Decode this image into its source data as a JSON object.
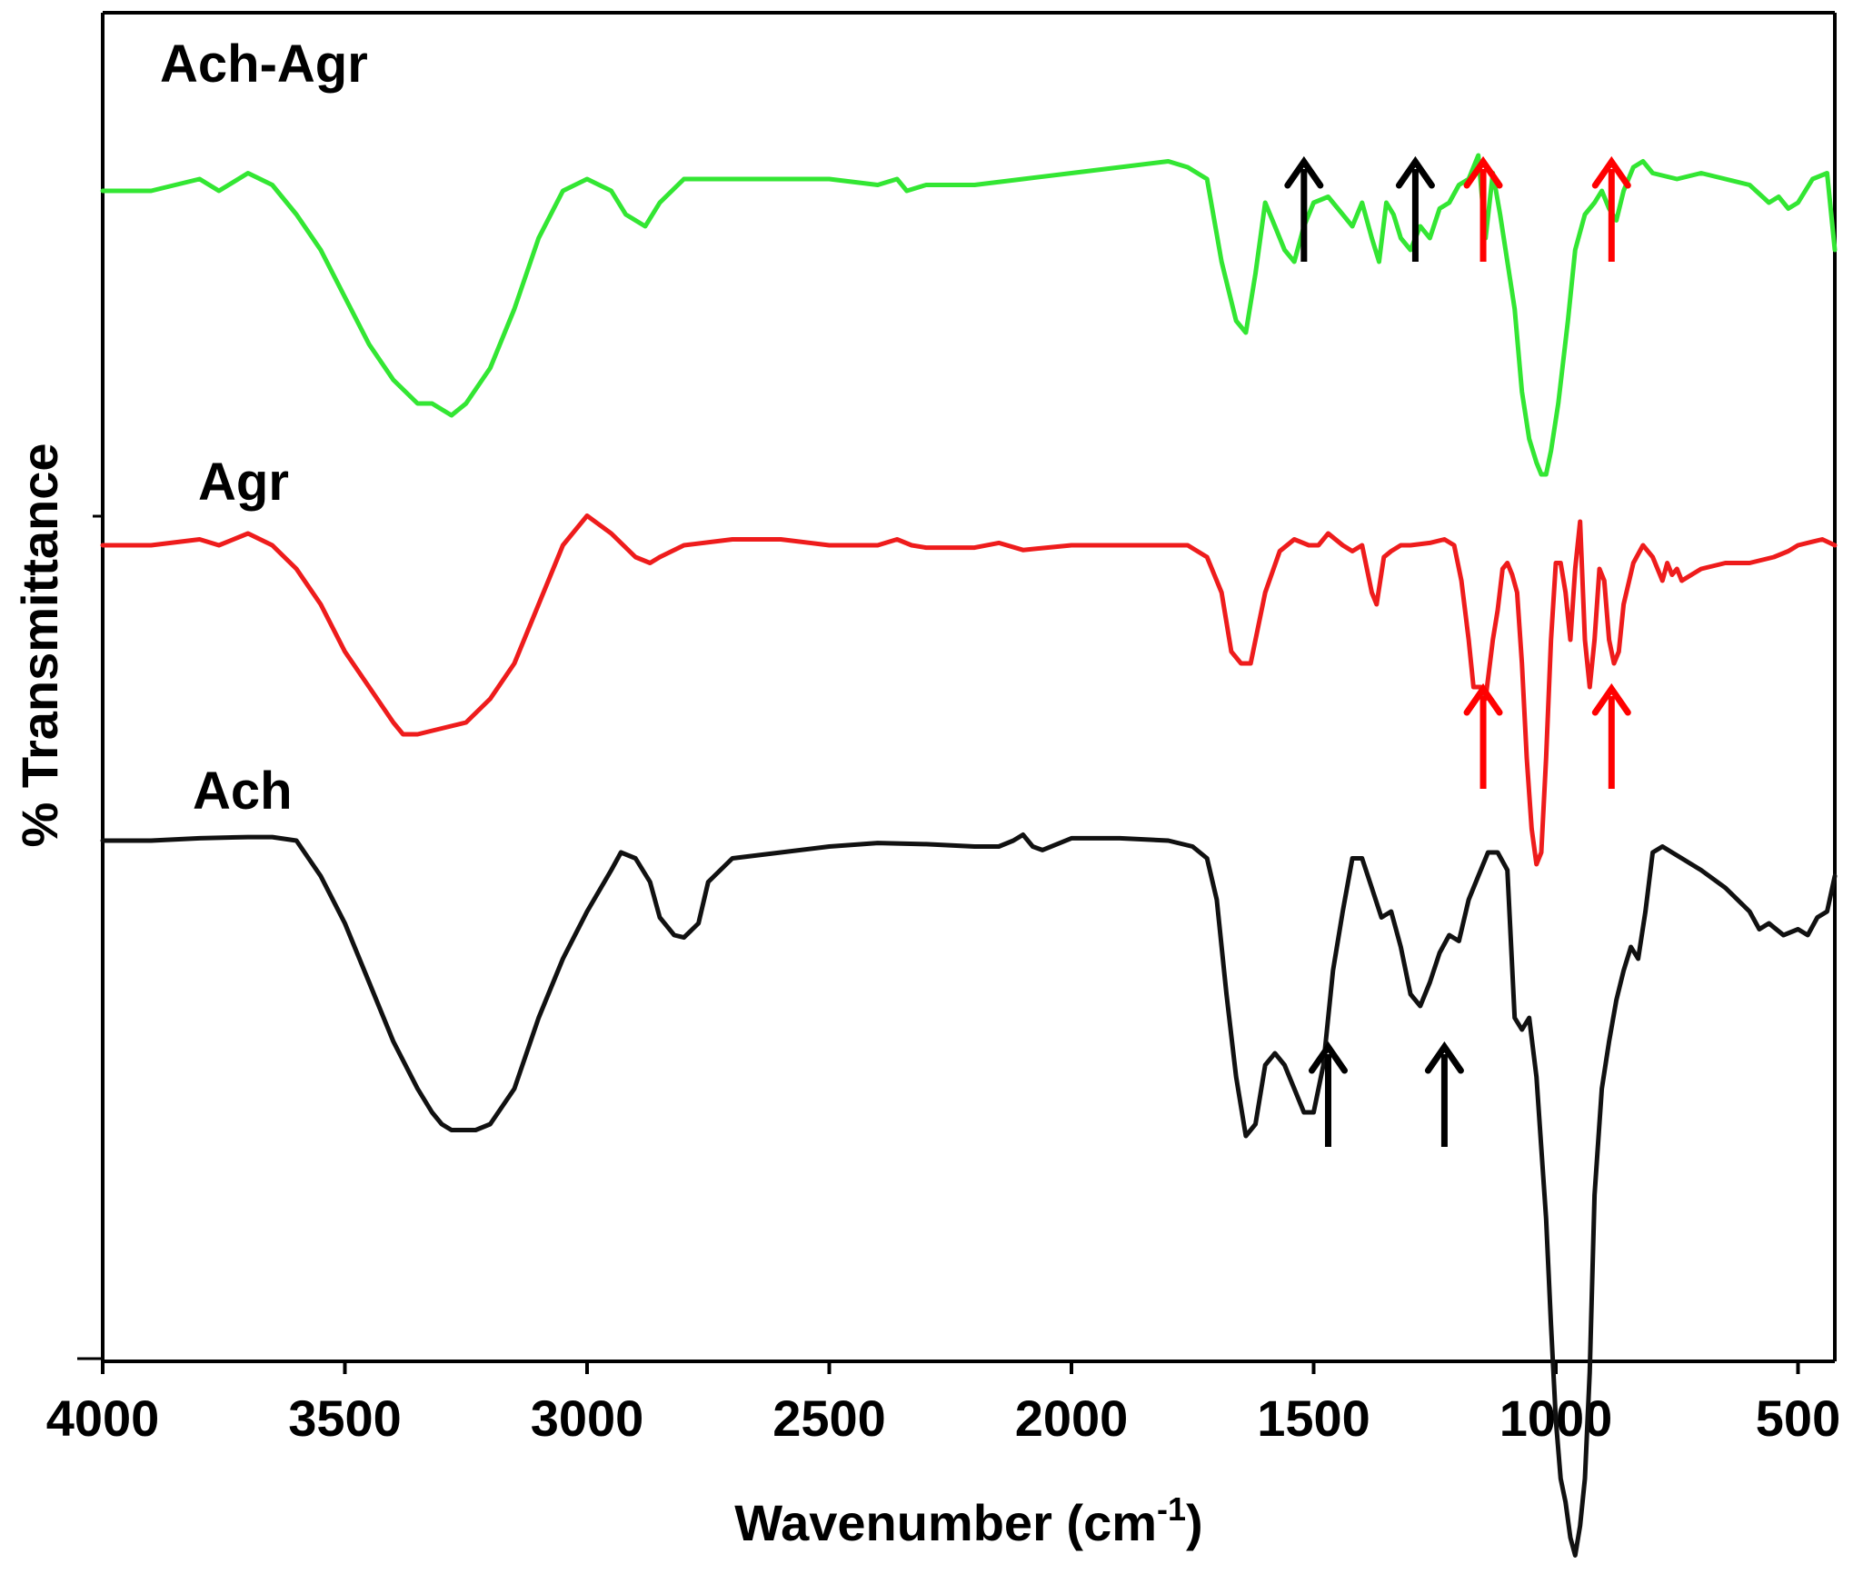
{
  "chart_data": {
    "type": "line",
    "xlabel": "Wavenumber (cm",
    "xlabel_sup": "-1",
    "xlabel_close": ")",
    "ylabel": "% Transmittance",
    "xlim": [
      4000,
      420
    ],
    "x_reversed": true,
    "x_ticks": [
      4000,
      3500,
      3000,
      2500,
      2000,
      1500,
      1000,
      500
    ],
    "y_ticks_labeled": false,
    "y_units": "relative transmittance (stacked, offset traces)",
    "grid": false,
    "legend": "labels placed directly above each trace",
    "series": [
      {
        "name": "Ach-Agr",
        "color": "#33e633",
        "x": [
          4000,
          3900,
          3800,
          3760,
          3700,
          3650,
          3600,
          3550,
          3500,
          3450,
          3400,
          3350,
          3320,
          3280,
          3250,
          3200,
          3150,
          3100,
          3050,
          3000,
          2950,
          2920,
          2880,
          2850,
          2800,
          2700,
          2600,
          2500,
          2400,
          2360,
          2340,
          2300,
          2200,
          2100,
          2000,
          1900,
          1800,
          1760,
          1720,
          1690,
          1660,
          1640,
          1620,
          1600,
          1580,
          1560,
          1540,
          1520,
          1500,
          1470,
          1440,
          1420,
          1400,
          1380,
          1365,
          1350,
          1335,
          1320,
          1300,
          1280,
          1260,
          1240,
          1220,
          1200,
          1180,
          1160,
          1145,
          1130,
          1115,
          1100,
          1085,
          1070,
          1055,
          1040,
          1030,
          1020,
          1010,
          995,
          975,
          960,
          940,
          920,
          905,
          890,
          875,
          860,
          840,
          820,
          800,
          750,
          700,
          650,
          600,
          560,
          540,
          520,
          500,
          470,
          440,
          420
        ],
        "y": [
          0.9,
          0.9,
          0.91,
          0.9,
          0.915,
          0.905,
          0.88,
          0.85,
          0.81,
          0.77,
          0.74,
          0.72,
          0.72,
          0.71,
          0.72,
          0.75,
          0.8,
          0.86,
          0.9,
          0.91,
          0.9,
          0.88,
          0.87,
          0.89,
          0.91,
          0.91,
          0.91,
          0.91,
          0.905,
          0.91,
          0.9,
          0.905,
          0.905,
          0.91,
          0.915,
          0.92,
          0.925,
          0.92,
          0.91,
          0.84,
          0.79,
          0.78,
          0.83,
          0.89,
          0.87,
          0.85,
          0.84,
          0.87,
          0.89,
          0.895,
          0.88,
          0.87,
          0.89,
          0.86,
          0.84,
          0.89,
          0.88,
          0.86,
          0.85,
          0.87,
          0.86,
          0.885,
          0.89,
          0.905,
          0.91,
          0.93,
          0.86,
          0.915,
          0.88,
          0.84,
          0.8,
          0.73,
          0.69,
          0.67,
          0.66,
          0.66,
          0.68,
          0.72,
          0.79,
          0.85,
          0.88,
          0.89,
          0.9,
          0.885,
          0.875,
          0.9,
          0.92,
          0.925,
          0.915,
          0.91,
          0.915,
          0.91,
          0.905,
          0.89,
          0.895,
          0.885,
          0.89,
          0.91,
          0.915,
          0.85
        ]
      },
      {
        "name": "Agr",
        "color": "#ee1c1c",
        "x": [
          4000,
          3900,
          3800,
          3760,
          3700,
          3650,
          3600,
          3550,
          3500,
          3450,
          3400,
          3380,
          3350,
          3300,
          3250,
          3200,
          3150,
          3100,
          3050,
          3000,
          2950,
          2900,
          2870,
          2850,
          2800,
          2700,
          2600,
          2500,
          2400,
          2360,
          2330,
          2300,
          2200,
          2150,
          2100,
          2000,
          1900,
          1800,
          1760,
          1720,
          1690,
          1670,
          1650,
          1630,
          1600,
          1570,
          1540,
          1510,
          1490,
          1470,
          1440,
          1420,
          1400,
          1380,
          1370,
          1355,
          1340,
          1320,
          1300,
          1260,
          1230,
          1210,
          1195,
          1180,
          1170,
          1155,
          1145,
          1130,
          1120,
          1110,
          1100,
          1090,
          1080,
          1070,
          1060,
          1050,
          1040,
          1030,
          1020,
          1010,
          1000,
          990,
          980,
          970,
          960,
          950,
          940,
          930,
          920,
          910,
          900,
          890,
          880,
          870,
          860,
          840,
          820,
          800,
          780,
          770,
          760,
          750,
          740,
          720,
          700,
          650,
          600,
          550,
          520,
          500,
          470,
          450,
          420
        ],
        "y": [
          0.6,
          0.6,
          0.605,
          0.6,
          0.61,
          0.6,
          0.58,
          0.55,
          0.51,
          0.48,
          0.45,
          0.44,
          0.44,
          0.445,
          0.45,
          0.47,
          0.5,
          0.55,
          0.6,
          0.625,
          0.61,
          0.59,
          0.585,
          0.59,
          0.6,
          0.605,
          0.605,
          0.6,
          0.6,
          0.605,
          0.6,
          0.598,
          0.598,
          0.602,
          0.596,
          0.6,
          0.6,
          0.6,
          0.6,
          0.59,
          0.56,
          0.51,
          0.5,
          0.5,
          0.56,
          0.595,
          0.605,
          0.6,
          0.6,
          0.61,
          0.6,
          0.595,
          0.6,
          0.56,
          0.55,
          0.59,
          0.595,
          0.6,
          0.6,
          0.602,
          0.605,
          0.6,
          0.57,
          0.52,
          0.48,
          0.48,
          0.47,
          0.52,
          0.545,
          0.58,
          0.585,
          0.575,
          0.56,
          0.5,
          0.42,
          0.36,
          0.33,
          0.34,
          0.42,
          0.52,
          0.585,
          0.585,
          0.56,
          0.52,
          0.58,
          0.62,
          0.52,
          0.48,
          0.52,
          0.58,
          0.57,
          0.52,
          0.5,
          0.51,
          0.55,
          0.585,
          0.6,
          0.59,
          0.57,
          0.585,
          0.575,
          0.58,
          0.57,
          0.575,
          0.58,
          0.585,
          0.585,
          0.59,
          0.595,
          0.6,
          0.603,
          0.605,
          0.6
        ]
      },
      {
        "name": "Ach",
        "color": "#111111",
        "x": [
          4000,
          3900,
          3800,
          3700,
          3650,
          3600,
          3550,
          3500,
          3450,
          3400,
          3350,
          3320,
          3300,
          3280,
          3260,
          3230,
          3200,
          3150,
          3100,
          3050,
          3000,
          2950,
          2930,
          2900,
          2870,
          2850,
          2820,
          2800,
          2770,
          2750,
          2700,
          2600,
          2500,
          2400,
          2300,
          2200,
          2150,
          2120,
          2100,
          2080,
          2060,
          2000,
          1900,
          1800,
          1750,
          1720,
          1700,
          1680,
          1660,
          1640,
          1620,
          1600,
          1580,
          1560,
          1540,
          1520,
          1500,
          1480,
          1460,
          1440,
          1420,
          1400,
          1380,
          1360,
          1340,
          1320,
          1300,
          1280,
          1260,
          1240,
          1220,
          1200,
          1180,
          1160,
          1140,
          1120,
          1100,
          1085,
          1070,
          1055,
          1040,
          1030,
          1020,
          1010,
          1000,
          990,
          980,
          970,
          960,
          950,
          940,
          930,
          920,
          905,
          890,
          875,
          860,
          845,
          830,
          815,
          800,
          780,
          760,
          740,
          720,
          700,
          650,
          600,
          580,
          560,
          530,
          500,
          480,
          460,
          440,
          420
        ],
        "y": [
          0.35,
          0.35,
          0.352,
          0.353,
          0.353,
          0.35,
          0.32,
          0.28,
          0.23,
          0.18,
          0.14,
          0.12,
          0.11,
          0.105,
          0.105,
          0.105,
          0.11,
          0.14,
          0.2,
          0.25,
          0.29,
          0.325,
          0.34,
          0.335,
          0.315,
          0.285,
          0.27,
          0.268,
          0.28,
          0.315,
          0.335,
          0.34,
          0.345,
          0.348,
          0.347,
          0.345,
          0.345,
          0.35,
          0.355,
          0.345,
          0.342,
          0.352,
          0.352,
          0.35,
          0.345,
          0.335,
          0.3,
          0.22,
          0.15,
          0.1,
          0.11,
          0.16,
          0.17,
          0.16,
          0.14,
          0.12,
          0.12,
          0.16,
          0.24,
          0.29,
          0.335,
          0.335,
          0.31,
          0.285,
          0.29,
          0.26,
          0.22,
          0.21,
          0.23,
          0.255,
          0.27,
          0.265,
          0.3,
          0.32,
          0.34,
          0.34,
          0.325,
          0.2,
          0.19,
          0.2,
          0.15,
          0.09,
          0.03,
          -0.06,
          -0.14,
          -0.19,
          -0.21,
          -0.24,
          -0.255,
          -0.23,
          -0.19,
          -0.1,
          0.05,
          0.14,
          0.18,
          0.215,
          0.24,
          0.26,
          0.25,
          0.29,
          0.34,
          0.345,
          0.34,
          0.335,
          0.33,
          0.325,
          0.31,
          0.29,
          0.275,
          0.28,
          0.27,
          0.275,
          0.27,
          0.285,
          0.29,
          0.32
        ]
      }
    ],
    "annotations": [
      {
        "type": "arrow",
        "color": "#000000",
        "x": 1520,
        "series": "Ach-Agr",
        "position": "below trace, pointing up"
      },
      {
        "type": "arrow",
        "color": "#000000",
        "x": 1290,
        "series": "Ach-Agr",
        "position": "below trace, pointing up"
      },
      {
        "type": "arrow",
        "color": "#ff0000",
        "x": 1150,
        "series": "Ach-Agr",
        "position": "below trace, pointing up"
      },
      {
        "type": "arrow",
        "color": "#ff0000",
        "x": 885,
        "series": "Ach-Agr",
        "position": "below trace, pointing up"
      },
      {
        "type": "arrow",
        "color": "#ff0000",
        "x": 1150,
        "series": "Agr",
        "position": "below trace, pointing up"
      },
      {
        "type": "arrow",
        "color": "#ff0000",
        "x": 885,
        "series": "Agr",
        "position": "below trace, pointing up"
      },
      {
        "type": "arrow",
        "color": "#000000",
        "x": 1470,
        "series": "Ach",
        "position": "below trace, pointing up"
      },
      {
        "type": "arrow",
        "color": "#000000",
        "x": 1230,
        "series": "Ach",
        "position": "below trace, pointing up"
      }
    ]
  }
}
